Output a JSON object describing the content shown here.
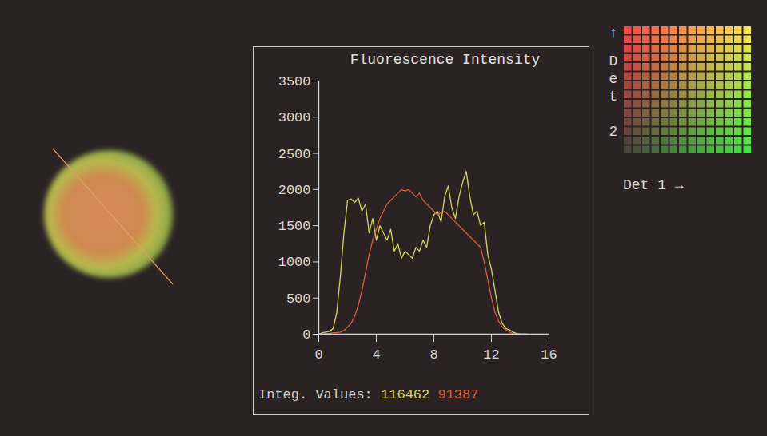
{
  "chart_data": {
    "type": "line",
    "title": "Fluorescence Intensity",
    "x": [
      0,
      0.25,
      0.5,
      0.75,
      1,
      1.25,
      1.5,
      1.75,
      2,
      2.25,
      2.5,
      2.75,
      3,
      3.25,
      3.5,
      3.75,
      4,
      4.25,
      4.5,
      4.75,
      5,
      5.25,
      5.5,
      5.75,
      6,
      6.25,
      6.5,
      6.75,
      7,
      7.25,
      7.5,
      7.75,
      8,
      8.25,
      8.5,
      8.75,
      9,
      9.25,
      9.5,
      9.75,
      10,
      10.25,
      10.5,
      10.75,
      11,
      11.25,
      11.5,
      11.75,
      12,
      12.25,
      12.5,
      12.75,
      13,
      13.25,
      13.5,
      13.75,
      14,
      14.25,
      14.5
    ],
    "xlim": [
      0,
      16
    ],
    "xticks": [
      0,
      4,
      8,
      12,
      16
    ],
    "ylim": [
      0,
      3500
    ],
    "yticks": [
      0,
      500,
      1000,
      1500,
      2000,
      2500,
      3000,
      3500
    ],
    "integ_label": "Integ. Values:",
    "series": [
      {
        "color": "#d6d65e",
        "integ_value": 116462,
        "values": [
          0,
          20,
          30,
          40,
          80,
          300,
          800,
          1400,
          1850,
          1870,
          1820,
          1880,
          1700,
          1800,
          1400,
          1600,
          1300,
          1500,
          1400,
          1300,
          1450,
          1150,
          1250,
          1050,
          1150,
          1100,
          1050,
          1200,
          1150,
          1300,
          1200,
          1500,
          1650,
          1700,
          1550,
          1900,
          2050,
          1750,
          1600,
          1900,
          2100,
          2250,
          1900,
          1650,
          1700,
          1500,
          1550,
          1100,
          900,
          600,
          300,
          150,
          80,
          60,
          30,
          10,
          0,
          0,
          0
        ]
      },
      {
        "color": "#d4603e",
        "integ_value": 91387,
        "values": [
          0,
          0,
          10,
          10,
          20,
          20,
          30,
          50,
          100,
          150,
          250,
          400,
          600,
          850,
          1100,
          1300,
          1450,
          1600,
          1700,
          1800,
          1850,
          1900,
          1950,
          2000,
          1980,
          2000,
          1950,
          1900,
          1950,
          1850,
          1800,
          1750,
          1700,
          1650,
          1680,
          1700,
          1650,
          1600,
          1550,
          1500,
          1450,
          1400,
          1350,
          1300,
          1250,
          1200,
          1000,
          750,
          500,
          300,
          180,
          100,
          60,
          30,
          10,
          0,
          0,
          0,
          0
        ]
      }
    ]
  },
  "color_map": {
    "x_label": "Det 1 →",
    "y_label": "Det 2",
    "y_arrow": "↑"
  }
}
